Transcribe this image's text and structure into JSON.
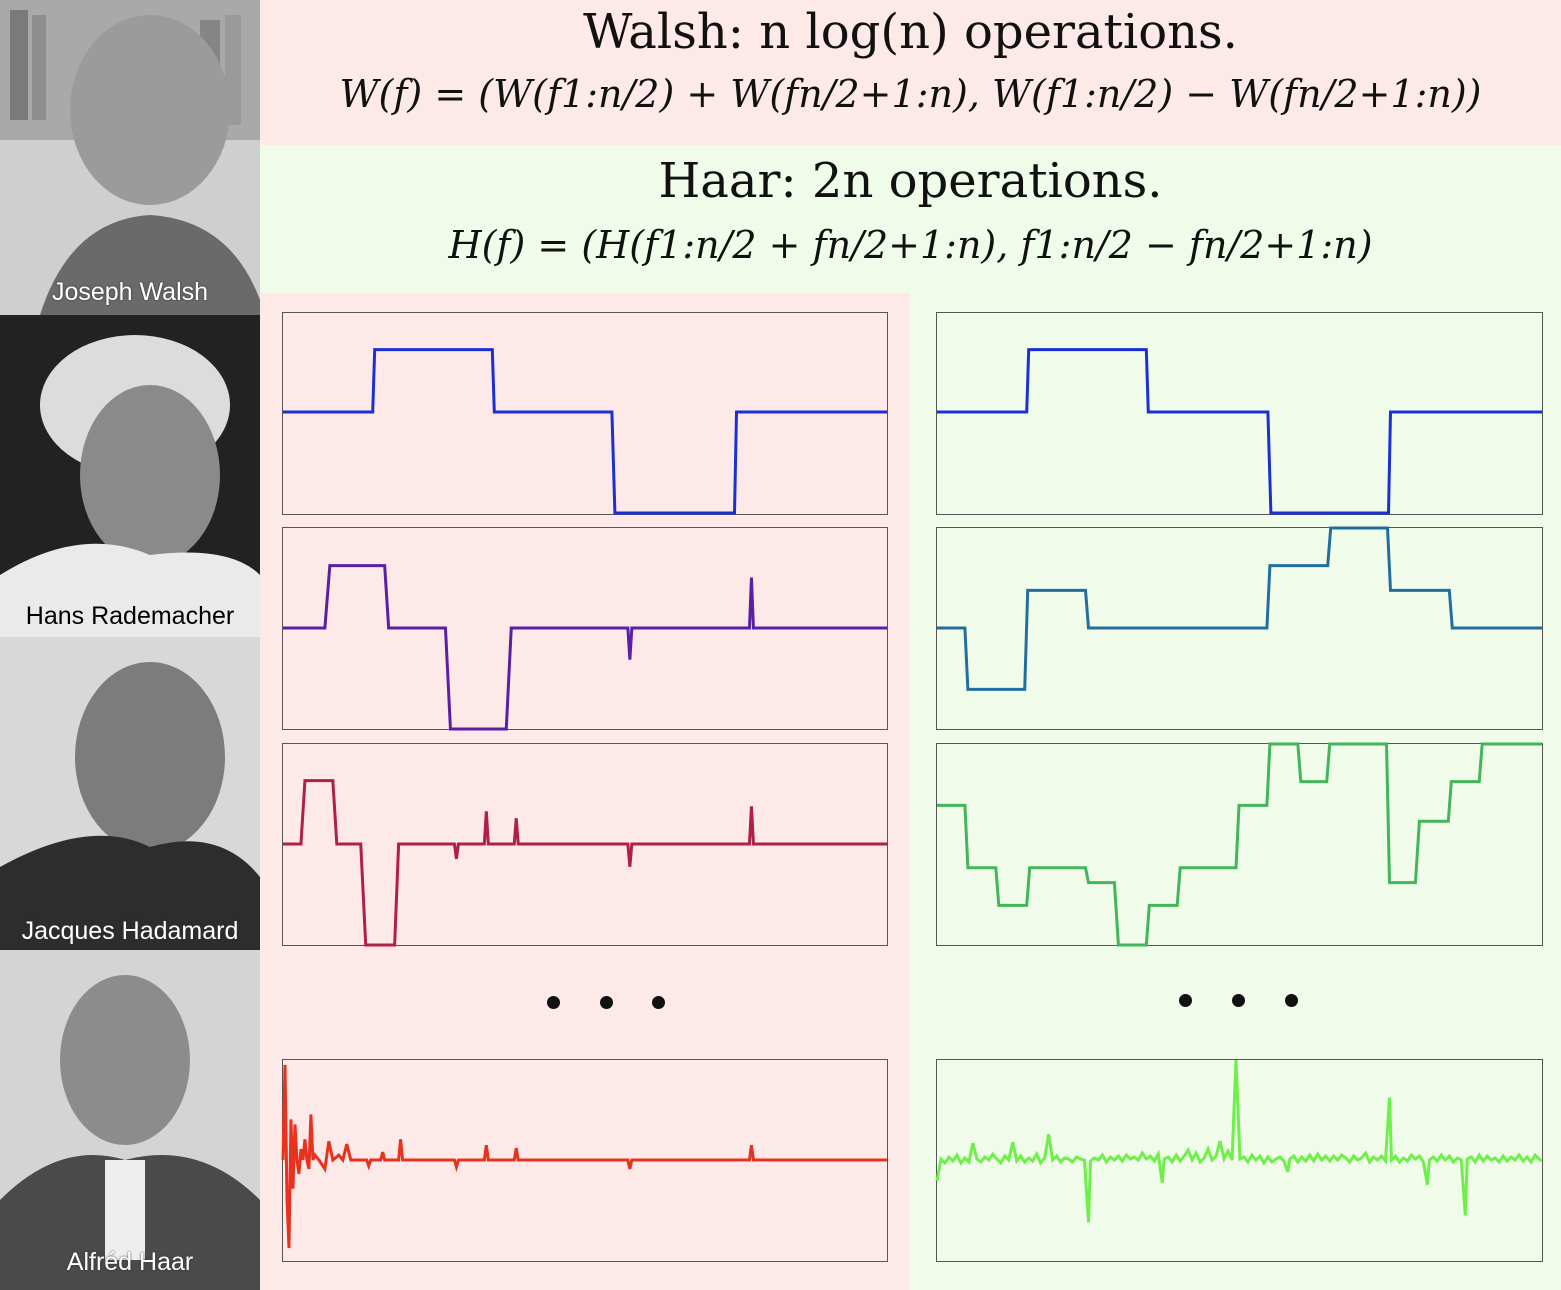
{
  "portraits": [
    {
      "name": "Joseph Walsh"
    },
    {
      "name": "Hans Rademacher"
    },
    {
      "name": "Jacques Hadamard"
    },
    {
      "name": "Alfréd Haar"
    }
  ],
  "walsh": {
    "title": "Walsh: n log(n) operations.",
    "formula": "W(f) = (W(f1:n/2) + W(fn/2+1:n), W(f1:n/2) − W(fn/2+1:n))",
    "bg_color": "#fdeae8"
  },
  "haar": {
    "title": "Haar: 2n operations.",
    "formula": "H(f) = (H(f1:n/2 + fn/2+1:n), f1:n/2 − fn/2+1:n)",
    "bg_color": "#f0fbea"
  },
  "ellipsis": "• • •",
  "plots": {
    "walsh": [
      {
        "color": "#1a2fd6"
      },
      {
        "color": "#5b1fa6"
      },
      {
        "color": "#b01f4a"
      },
      {
        "color": "#e8321e"
      }
    ],
    "haar": [
      {
        "color": "#1a2fd6"
      },
      {
        "color": "#236e9e"
      },
      {
        "color": "#43b55a"
      },
      {
        "color": "#6ef04a"
      }
    ]
  }
}
